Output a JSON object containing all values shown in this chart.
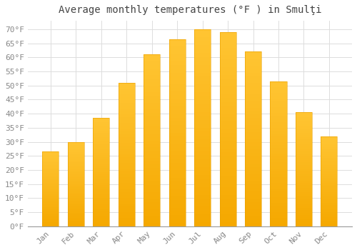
{
  "title": "Average monthly temperatures (°F ) in Smulţi",
  "months": [
    "Jan",
    "Feb",
    "Mar",
    "Apr",
    "May",
    "Jun",
    "Jul",
    "Aug",
    "Sep",
    "Oct",
    "Nov",
    "Dec"
  ],
  "values": [
    26.5,
    30.0,
    38.5,
    51.0,
    61.0,
    66.5,
    70.0,
    69.0,
    62.0,
    51.5,
    40.5,
    32.0
  ],
  "bar_color_top": "#FFC533",
  "bar_color_bottom": "#F5A800",
  "bar_edge_color": "#E8A000",
  "background_color": "#FFFFFF",
  "grid_color": "#DDDDDD",
  "ylim": [
    0,
    73
  ],
  "ytick_step": 5,
  "title_fontsize": 10,
  "tick_fontsize": 8,
  "tick_color": "#888888",
  "title_color": "#444444",
  "font_family": "monospace",
  "bar_width": 0.65
}
